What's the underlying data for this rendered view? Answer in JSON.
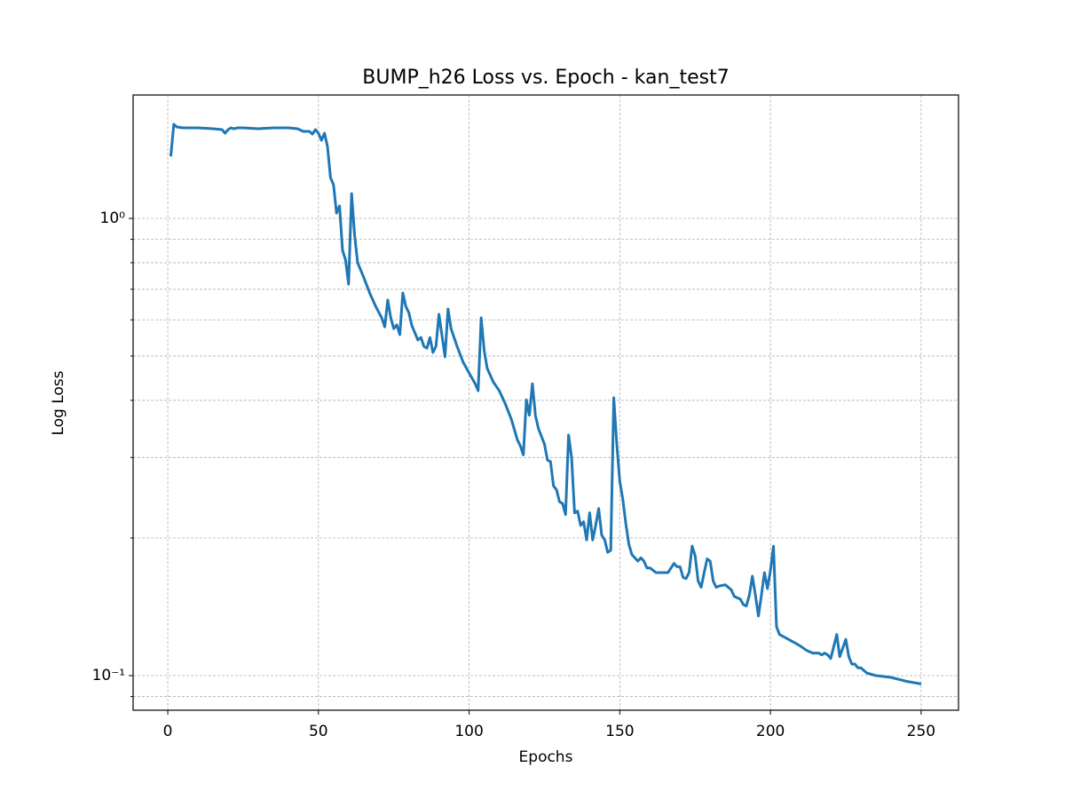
{
  "chart_data": {
    "type": "line",
    "title": "BUMP_h26 Loss vs. Epoch - kan_test7",
    "xlabel": "Epochs",
    "ylabel": "Log Loss",
    "yscale": "log",
    "grid": true,
    "xlim": [
      -11.5,
      262.4
    ],
    "ylim": [
      0.084,
      1.862
    ],
    "xticks": [
      0,
      50,
      100,
      150,
      200,
      250
    ],
    "yticks": [
      {
        "value": 0.1,
        "label": "10⁻¹"
      },
      {
        "value": 1,
        "label": "10⁰"
      }
    ],
    "yminor": [
      0.09,
      0.2,
      0.3,
      0.4,
      0.5,
      0.6,
      0.7,
      0.8,
      0.9
    ],
    "series": [
      {
        "color": "#1f77b4",
        "x": [
          1,
          2,
          3,
          5,
          10,
          15,
          18,
          19,
          20,
          21,
          22,
          23,
          25,
          30,
          35,
          40,
          43,
          45,
          47,
          48,
          49,
          50,
          51,
          52,
          53,
          54,
          55,
          56,
          57,
          58,
          59,
          60,
          61,
          62,
          63,
          65,
          67,
          69,
          71,
          72,
          73,
          74,
          75,
          76,
          77,
          78,
          79,
          80,
          81,
          83,
          84,
          85,
          86,
          87,
          88,
          89,
          90,
          91,
          92,
          93,
          94,
          96,
          98,
          100,
          102,
          103,
          104,
          105,
          106,
          108,
          110,
          112,
          114,
          116,
          117,
          118,
          119,
          120,
          121,
          122,
          123,
          125,
          126,
          127,
          128,
          129,
          130,
          131,
          132,
          133,
          134,
          135,
          136,
          137,
          138,
          139,
          140,
          141,
          142,
          143,
          144,
          145,
          146,
          147,
          148,
          149,
          150,
          151,
          152,
          153,
          154,
          155,
          156,
          157,
          158,
          159,
          160,
          162,
          164,
          166,
          168,
          169,
          170,
          171,
          172,
          173,
          174,
          175,
          176,
          177,
          178,
          179,
          180,
          181,
          182,
          183,
          185,
          187,
          188,
          190,
          191,
          192,
          193,
          194,
          195,
          196,
          197,
          198,
          199,
          200,
          201,
          202,
          203,
          204,
          206,
          208,
          210,
          212,
          214,
          216,
          217,
          218,
          219,
          220,
          222,
          223,
          225,
          226,
          227,
          228,
          229,
          230,
          232,
          235,
          240,
          245,
          250
        ],
        "values": [
          1.367,
          1.607,
          1.585,
          1.578,
          1.578,
          1.571,
          1.564,
          1.536,
          1.564,
          1.578,
          1.571,
          1.578,
          1.578,
          1.571,
          1.578,
          1.578,
          1.571,
          1.55,
          1.55,
          1.529,
          1.564,
          1.536,
          1.482,
          1.536,
          1.436,
          1.228,
          1.185,
          1.027,
          1.065,
          0.851,
          0.811,
          0.718,
          1.133,
          0.919,
          0.8,
          0.744,
          0.687,
          0.642,
          0.606,
          0.579,
          0.663,
          0.606,
          0.574,
          0.585,
          0.557,
          0.687,
          0.642,
          0.622,
          0.583,
          0.542,
          0.549,
          0.525,
          0.52,
          0.549,
          0.509,
          0.525,
          0.617,
          0.554,
          0.498,
          0.634,
          0.574,
          0.525,
          0.485,
          0.459,
          0.435,
          0.42,
          0.606,
          0.514,
          0.47,
          0.439,
          0.42,
          0.393,
          0.364,
          0.328,
          0.318,
          0.304,
          0.401,
          0.371,
          0.435,
          0.371,
          0.347,
          0.321,
          0.296,
          0.294,
          0.26,
          0.255,
          0.24,
          0.238,
          0.225,
          0.336,
          0.3,
          0.227,
          0.229,
          0.213,
          0.217,
          0.198,
          0.227,
          0.198,
          0.213,
          0.232,
          0.203,
          0.198,
          0.186,
          0.188,
          0.405,
          0.321,
          0.266,
          0.243,
          0.215,
          0.194,
          0.184,
          0.181,
          0.178,
          0.181,
          0.178,
          0.172,
          0.172,
          0.168,
          0.168,
          0.168,
          0.176,
          0.173,
          0.173,
          0.164,
          0.163,
          0.168,
          0.192,
          0.183,
          0.161,
          0.156,
          0.168,
          0.18,
          0.178,
          0.161,
          0.156,
          0.157,
          0.158,
          0.154,
          0.149,
          0.147,
          0.143,
          0.142,
          0.15,
          0.165,
          0.15,
          0.135,
          0.15,
          0.168,
          0.155,
          0.17,
          0.192,
          0.128,
          0.123,
          0.122,
          0.12,
          0.118,
          0.116,
          0.1135,
          0.112,
          0.112,
          0.111,
          0.112,
          0.111,
          0.109,
          0.123,
          0.11,
          0.12,
          0.11,
          0.106,
          0.106,
          0.104,
          0.104,
          0.1013,
          0.1,
          0.0991,
          0.0972,
          0.0959
        ]
      }
    ]
  }
}
